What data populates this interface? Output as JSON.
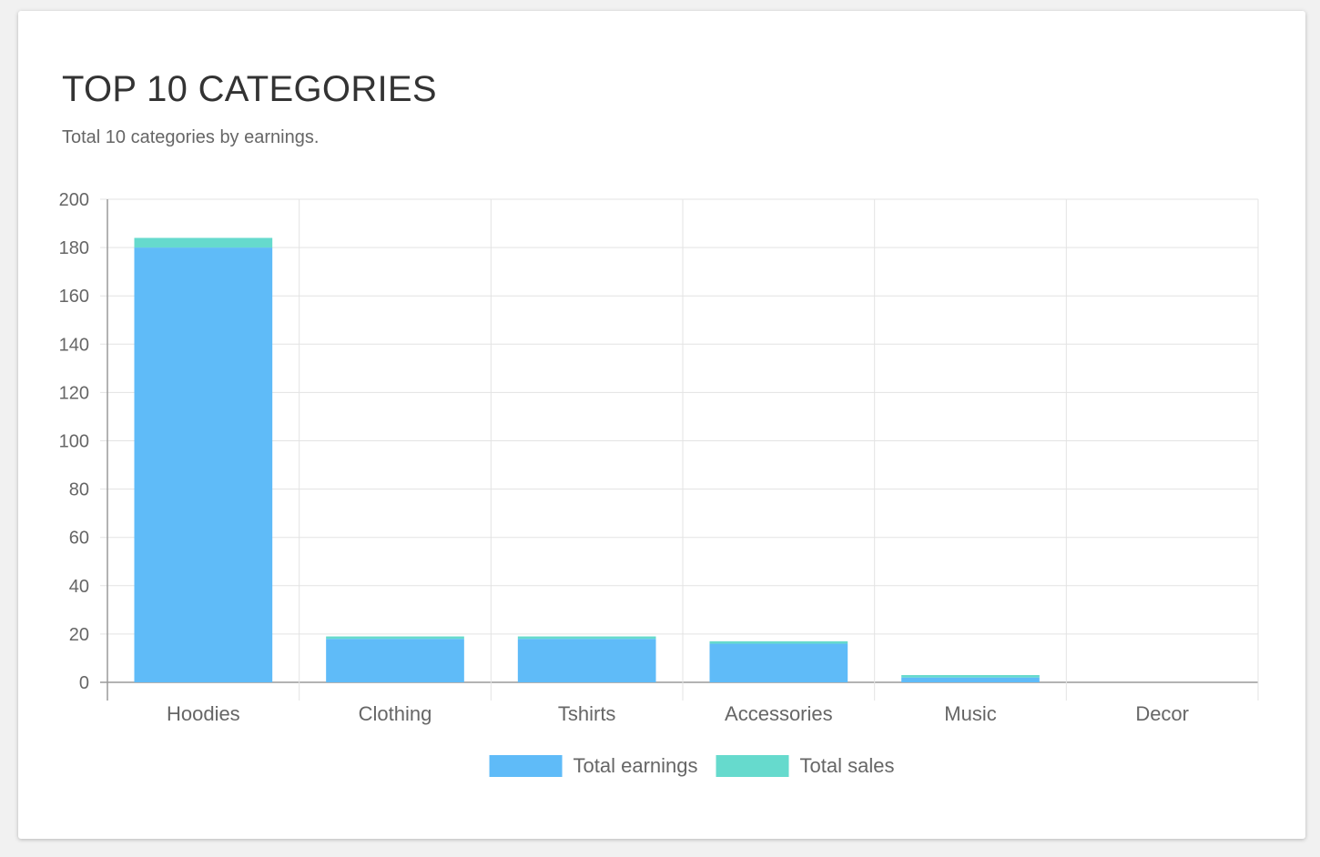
{
  "card": {
    "title": "TOP 10 CATEGORIES",
    "subtitle": "Total 10 categories by earnings."
  },
  "chart_data": {
    "type": "bar",
    "stacked": true,
    "categories": [
      "Hoodies",
      "Clothing",
      "Tshirts",
      "Accessories",
      "Music",
      "Decor"
    ],
    "series": [
      {
        "name": "Total earnings",
        "color": "#5fbbf8",
        "values": [
          180,
          18,
          18,
          16,
          2,
          0
        ]
      },
      {
        "name": "Total sales",
        "color": "#66dacd",
        "values": [
          4,
          1,
          1,
          1,
          1,
          0
        ]
      }
    ],
    "ylim": [
      0,
      200
    ],
    "yticks": [
      0,
      20,
      40,
      60,
      80,
      100,
      120,
      140,
      160,
      180,
      200
    ],
    "grid": true,
    "legend_position": "bottom"
  }
}
